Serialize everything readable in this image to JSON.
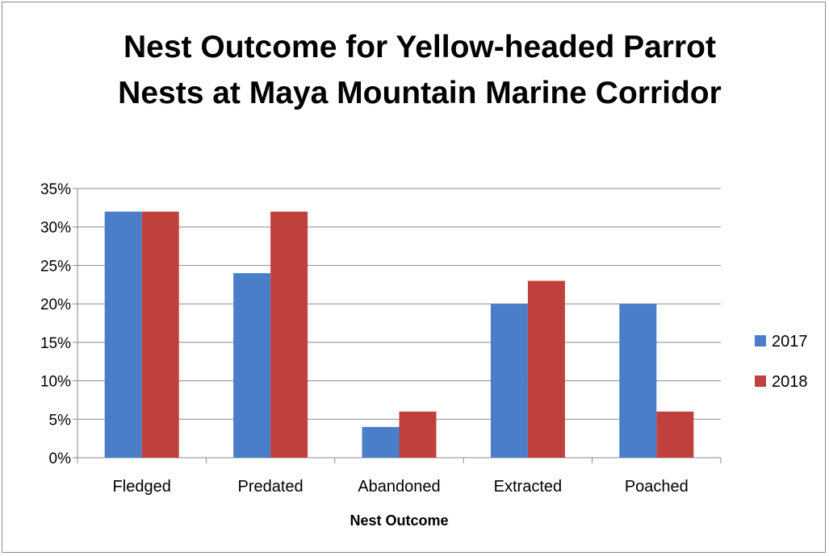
{
  "chart_data": {
    "type": "bar",
    "title": "Nest Outcome for Yellow-headed Parrot Nests at Maya Mountain Marine Corridor",
    "xlabel": "Nest Outcome",
    "ylabel": "",
    "categories": [
      "Fledged",
      "Predated",
      "Abandoned",
      "Extracted",
      "Poached"
    ],
    "series": [
      {
        "name": "2017",
        "values": [
          0.32,
          0.24,
          0.04,
          0.2,
          0.2
        ],
        "color": "#4a7ec9"
      },
      {
        "name": "2018",
        "values": [
          0.32,
          0.32,
          0.06,
          0.23,
          0.06
        ],
        "color": "#c0403d"
      }
    ],
    "ylim": [
      0,
      0.35
    ],
    "yticks": [
      "0%",
      "5%",
      "10%",
      "15%",
      "20%",
      "25%",
      "30%",
      "35%"
    ],
    "grid": true,
    "legend": "right"
  }
}
